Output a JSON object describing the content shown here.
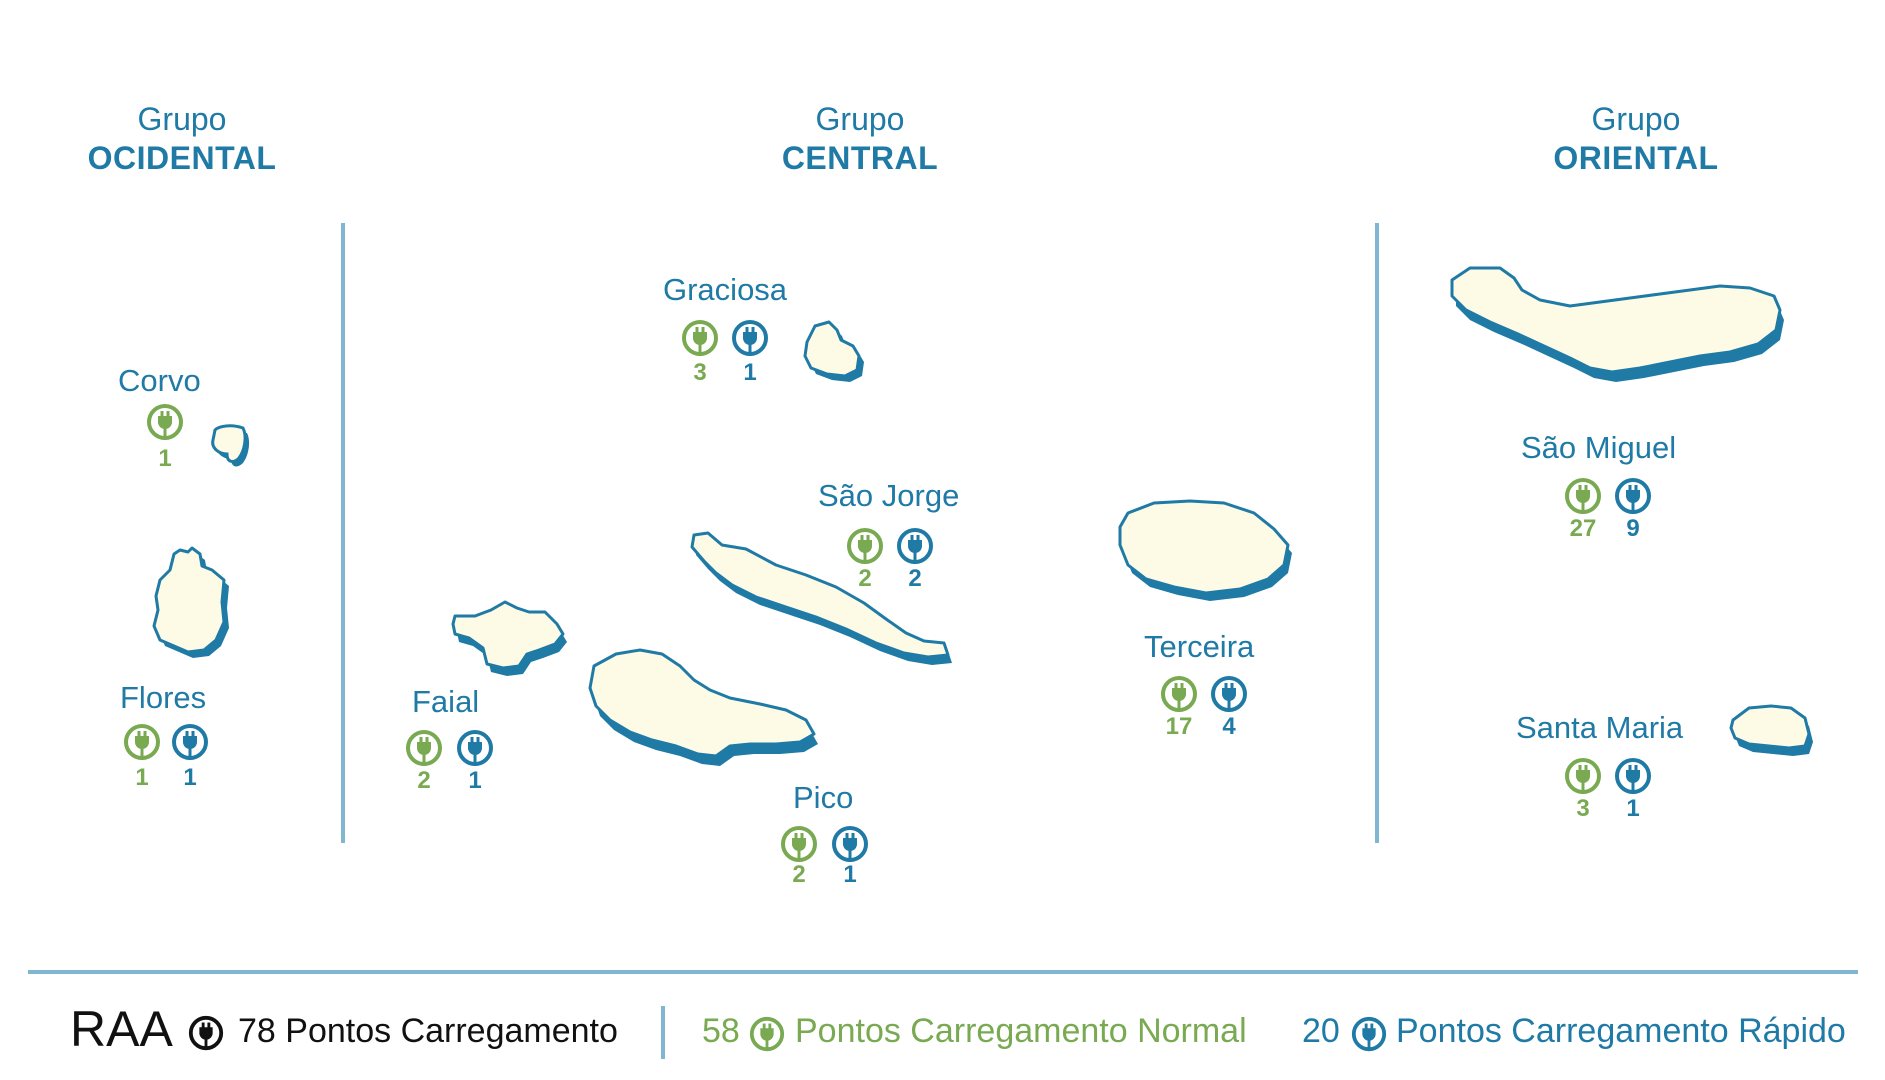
{
  "groups": {
    "ocidental": {
      "line1": "Grupo",
      "line2": "OCIDENTAL"
    },
    "central": {
      "line1": "Grupo",
      "line2": "CENTRAL"
    },
    "oriental": {
      "line1": "Grupo",
      "line2": "ORIENTAL"
    }
  },
  "islands": {
    "corvo": {
      "name": "Corvo",
      "normal": "1"
    },
    "flores": {
      "name": "Flores",
      "normal": "1",
      "rapid": "1"
    },
    "graciosa": {
      "name": "Graciosa",
      "normal": "3",
      "rapid": "1"
    },
    "sao_jorge": {
      "name": "São Jorge",
      "normal": "2",
      "rapid": "2"
    },
    "faial": {
      "name": "Faial",
      "normal": "2",
      "rapid": "1"
    },
    "pico": {
      "name": "Pico",
      "normal": "2",
      "rapid": "1"
    },
    "terceira": {
      "name": "Terceira",
      "normal": "17",
      "rapid": "4"
    },
    "sao_miguel": {
      "name": "São Miguel",
      "normal": "27",
      "rapid": "9"
    },
    "santa_maria": {
      "name": "Santa Maria",
      "normal": "3",
      "rapid": "1"
    }
  },
  "footer": {
    "region": "RAA",
    "total_count": "78",
    "total_label": "Pontos Carregamento",
    "normal_count": "58",
    "normal_label": "Pontos Carregamento Normal",
    "rapid_count": "20",
    "rapid_label": "Pontos Carregamento Rápido"
  },
  "legend": {
    "normal_icon": "plug-icon-normal",
    "rapid_icon": "plug-icon-rapid"
  },
  "colors": {
    "text_blue": "#1f7aa6",
    "normal_green": "#79aa52",
    "rapid_blue": "#1f7aa6",
    "island_fill": "#fdfbe6",
    "island_stroke": "#1f7aa6",
    "divider": "#7fb6d2"
  }
}
